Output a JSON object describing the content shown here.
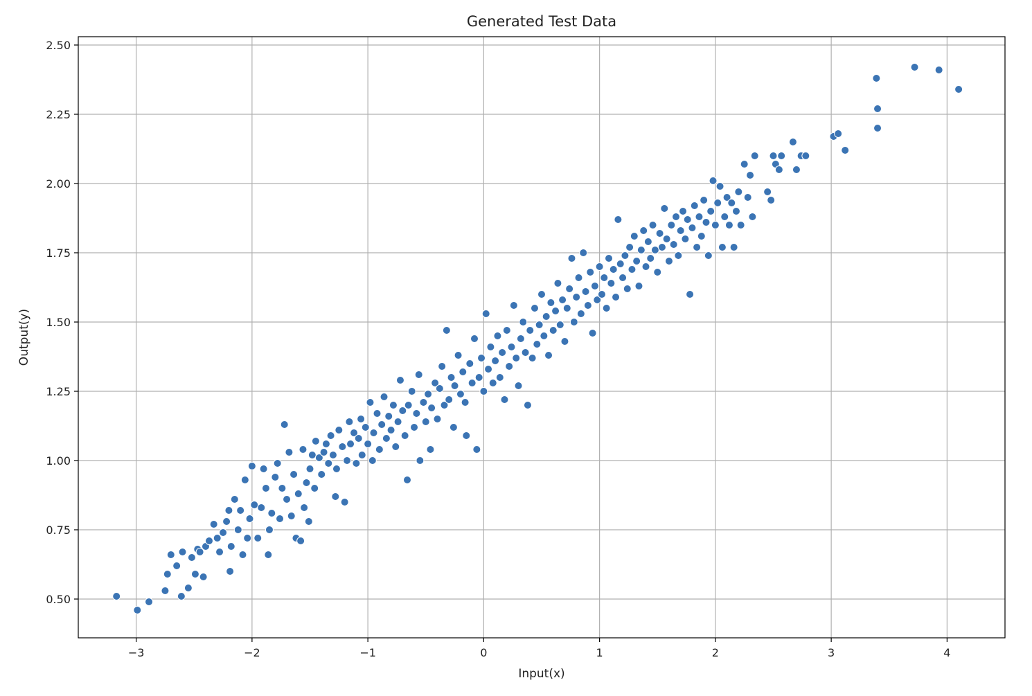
{
  "chart_data": {
    "type": "scatter",
    "title": "Generated Test Data",
    "xlabel": "Input(x)",
    "ylabel": "Output(y)",
    "xlim": [
      -3.5,
      4.5
    ],
    "ylim": [
      0.36,
      2.53
    ],
    "xticks": [
      -3,
      -2,
      -1,
      0,
      1,
      2,
      3,
      4
    ],
    "xtick_labels": [
      "−3",
      "−2",
      "−1",
      "0",
      "1",
      "2",
      "3",
      "4"
    ],
    "yticks": [
      0.5,
      0.75,
      1.0,
      1.25,
      1.5,
      1.75,
      2.0,
      2.25,
      2.5
    ],
    "ytick_labels": [
      "0.50",
      "0.75",
      "1.00",
      "1.25",
      "1.50",
      "1.75",
      "2.00",
      "2.25",
      "2.50"
    ],
    "grid": true,
    "marker_color": "#3b74b4",
    "marker_edge_color": "#ffffff",
    "points": [
      [
        -3.17,
        0.51
      ],
      [
        -2.99,
        0.46
      ],
      [
        -2.89,
        0.49
      ],
      [
        -2.75,
        0.53
      ],
      [
        -2.73,
        0.59
      ],
      [
        -2.7,
        0.66
      ],
      [
        -2.65,
        0.62
      ],
      [
        -2.61,
        0.51
      ],
      [
        -2.6,
        0.67
      ],
      [
        -2.55,
        0.54
      ],
      [
        -2.52,
        0.65
      ],
      [
        -2.49,
        0.59
      ],
      [
        -2.47,
        0.68
      ],
      [
        -2.45,
        0.67
      ],
      [
        -2.42,
        0.58
      ],
      [
        -2.4,
        0.69
      ],
      [
        -2.37,
        0.71
      ],
      [
        -2.33,
        0.77
      ],
      [
        -2.3,
        0.72
      ],
      [
        -2.28,
        0.67
      ],
      [
        -2.25,
        0.74
      ],
      [
        -2.22,
        0.78
      ],
      [
        -2.2,
        0.82
      ],
      [
        -2.19,
        0.6
      ],
      [
        -2.18,
        0.69
      ],
      [
        -2.15,
        0.86
      ],
      [
        -2.12,
        0.75
      ],
      [
        -2.1,
        0.82
      ],
      [
        -2.08,
        0.66
      ],
      [
        -2.06,
        0.93
      ],
      [
        -2.04,
        0.72
      ],
      [
        -2.02,
        0.79
      ],
      [
        -2.0,
        0.98
      ],
      [
        -1.98,
        0.84
      ],
      [
        -1.95,
        0.72
      ],
      [
        -1.92,
        0.83
      ],
      [
        -1.9,
        0.97
      ],
      [
        -1.88,
        0.9
      ],
      [
        -1.86,
        0.66
      ],
      [
        -1.85,
        0.75
      ],
      [
        -1.83,
        0.81
      ],
      [
        -1.8,
        0.94
      ],
      [
        -1.78,
        0.99
      ],
      [
        -1.76,
        0.79
      ],
      [
        -1.74,
        0.9
      ],
      [
        -1.72,
        1.13
      ],
      [
        -1.7,
        0.86
      ],
      [
        -1.68,
        1.03
      ],
      [
        -1.66,
        0.8
      ],
      [
        -1.64,
        0.95
      ],
      [
        -1.62,
        0.72
      ],
      [
        -1.6,
        0.88
      ],
      [
        -1.58,
        0.71
      ],
      [
        -1.56,
        1.04
      ],
      [
        -1.55,
        0.83
      ],
      [
        -1.53,
        0.92
      ],
      [
        -1.51,
        0.78
      ],
      [
        -1.5,
        0.97
      ],
      [
        -1.48,
        1.02
      ],
      [
        -1.46,
        0.9
      ],
      [
        -1.45,
        1.07
      ],
      [
        -1.42,
        1.01
      ],
      [
        -1.4,
        0.95
      ],
      [
        -1.38,
        1.03
      ],
      [
        -1.36,
        1.06
      ],
      [
        -1.34,
        0.99
      ],
      [
        -1.32,
        1.09
      ],
      [
        -1.3,
        1.02
      ],
      [
        -1.28,
        0.87
      ],
      [
        -1.27,
        0.97
      ],
      [
        -1.25,
        1.11
      ],
      [
        -1.22,
        1.05
      ],
      [
        -1.2,
        0.85
      ],
      [
        -1.18,
        1.0
      ],
      [
        -1.16,
        1.14
      ],
      [
        -1.15,
        1.06
      ],
      [
        -1.12,
        1.1
      ],
      [
        -1.1,
        0.99
      ],
      [
        -1.08,
        1.08
      ],
      [
        -1.06,
        1.15
      ],
      [
        -1.05,
        1.02
      ],
      [
        -1.02,
        1.12
      ],
      [
        -1.0,
        1.06
      ],
      [
        -0.98,
        1.21
      ],
      [
        -0.96,
        1.0
      ],
      [
        -0.95,
        1.1
      ],
      [
        -0.92,
        1.17
      ],
      [
        -0.9,
        1.04
      ],
      [
        -0.88,
        1.13
      ],
      [
        -0.86,
        1.23
      ],
      [
        -0.84,
        1.08
      ],
      [
        -0.82,
        1.16
      ],
      [
        -0.8,
        1.11
      ],
      [
        -0.78,
        1.2
      ],
      [
        -0.76,
        1.05
      ],
      [
        -0.74,
        1.14
      ],
      [
        -0.72,
        1.29
      ],
      [
        -0.7,
        1.18
      ],
      [
        -0.68,
        1.09
      ],
      [
        -0.66,
        0.93
      ],
      [
        -0.65,
        1.2
      ],
      [
        -0.62,
        1.25
      ],
      [
        -0.6,
        1.12
      ],
      [
        -0.58,
        1.17
      ],
      [
        -0.56,
        1.31
      ],
      [
        -0.55,
        1.0
      ],
      [
        -0.52,
        1.21
      ],
      [
        -0.5,
        1.14
      ],
      [
        -0.48,
        1.24
      ],
      [
        -0.46,
        1.04
      ],
      [
        -0.45,
        1.19
      ],
      [
        -0.42,
        1.28
      ],
      [
        -0.4,
        1.15
      ],
      [
        -0.38,
        1.26
      ],
      [
        -0.36,
        1.34
      ],
      [
        -0.34,
        1.2
      ],
      [
        -0.32,
        1.47
      ],
      [
        -0.3,
        1.22
      ],
      [
        -0.28,
        1.3
      ],
      [
        -0.26,
        1.12
      ],
      [
        -0.25,
        1.27
      ],
      [
        -0.22,
        1.38
      ],
      [
        -0.2,
        1.24
      ],
      [
        -0.18,
        1.32
      ],
      [
        -0.16,
        1.21
      ],
      [
        -0.15,
        1.09
      ],
      [
        -0.12,
        1.35
      ],
      [
        -0.1,
        1.28
      ],
      [
        -0.08,
        1.44
      ],
      [
        -0.06,
        1.04
      ],
      [
        -0.04,
        1.3
      ],
      [
        -0.02,
        1.37
      ],
      [
        0.0,
        1.25
      ],
      [
        0.02,
        1.53
      ],
      [
        0.04,
        1.33
      ],
      [
        0.06,
        1.41
      ],
      [
        0.08,
        1.28
      ],
      [
        0.1,
        1.36
      ],
      [
        0.12,
        1.45
      ],
      [
        0.14,
        1.3
      ],
      [
        0.16,
        1.39
      ],
      [
        0.18,
        1.22
      ],
      [
        0.2,
        1.47
      ],
      [
        0.22,
        1.34
      ],
      [
        0.24,
        1.41
      ],
      [
        0.26,
        1.56
      ],
      [
        0.28,
        1.37
      ],
      [
        0.3,
        1.27
      ],
      [
        0.32,
        1.44
      ],
      [
        0.34,
        1.5
      ],
      [
        0.36,
        1.39
      ],
      [
        0.38,
        1.2
      ],
      [
        0.4,
        1.47
      ],
      [
        0.42,
        1.37
      ],
      [
        0.44,
        1.55
      ],
      [
        0.46,
        1.42
      ],
      [
        0.48,
        1.49
      ],
      [
        0.5,
        1.6
      ],
      [
        0.52,
        1.45
      ],
      [
        0.54,
        1.52
      ],
      [
        0.56,
        1.38
      ],
      [
        0.58,
        1.57
      ],
      [
        0.6,
        1.47
      ],
      [
        0.62,
        1.54
      ],
      [
        0.64,
        1.64
      ],
      [
        0.66,
        1.49
      ],
      [
        0.68,
        1.58
      ],
      [
        0.7,
        1.43
      ],
      [
        0.72,
        1.55
      ],
      [
        0.74,
        1.62
      ],
      [
        0.76,
        1.73
      ],
      [
        0.78,
        1.5
      ],
      [
        0.8,
        1.59
      ],
      [
        0.82,
        1.66
      ],
      [
        0.84,
        1.53
      ],
      [
        0.86,
        1.75
      ],
      [
        0.88,
        1.61
      ],
      [
        0.9,
        1.56
      ],
      [
        0.92,
        1.68
      ],
      [
        0.94,
        1.46
      ],
      [
        0.96,
        1.63
      ],
      [
        0.98,
        1.58
      ],
      [
        1.0,
        1.7
      ],
      [
        1.02,
        1.6
      ],
      [
        1.04,
        1.66
      ],
      [
        1.06,
        1.55
      ],
      [
        1.08,
        1.73
      ],
      [
        1.1,
        1.64
      ],
      [
        1.12,
        1.69
      ],
      [
        1.14,
        1.59
      ],
      [
        1.16,
        1.87
      ],
      [
        1.18,
        1.71
      ],
      [
        1.2,
        1.66
      ],
      [
        1.22,
        1.74
      ],
      [
        1.24,
        1.62
      ],
      [
        1.26,
        1.77
      ],
      [
        1.28,
        1.69
      ],
      [
        1.3,
        1.81
      ],
      [
        1.32,
        1.72
      ],
      [
        1.34,
        1.63
      ],
      [
        1.36,
        1.76
      ],
      [
        1.38,
        1.83
      ],
      [
        1.4,
        1.7
      ],
      [
        1.42,
        1.79
      ],
      [
        1.44,
        1.73
      ],
      [
        1.46,
        1.85
      ],
      [
        1.48,
        1.76
      ],
      [
        1.5,
        1.68
      ],
      [
        1.52,
        1.82
      ],
      [
        1.54,
        1.77
      ],
      [
        1.56,
        1.91
      ],
      [
        1.58,
        1.8
      ],
      [
        1.6,
        1.72
      ],
      [
        1.62,
        1.85
      ],
      [
        1.64,
        1.78
      ],
      [
        1.66,
        1.88
      ],
      [
        1.68,
        1.74
      ],
      [
        1.7,
        1.83
      ],
      [
        1.72,
        1.9
      ],
      [
        1.74,
        1.8
      ],
      [
        1.76,
        1.87
      ],
      [
        1.78,
        1.6
      ],
      [
        1.8,
        1.84
      ],
      [
        1.82,
        1.92
      ],
      [
        1.84,
        1.77
      ],
      [
        1.86,
        1.88
      ],
      [
        1.88,
        1.81
      ],
      [
        1.9,
        1.94
      ],
      [
        1.92,
        1.86
      ],
      [
        1.94,
        1.74
      ],
      [
        1.96,
        1.9
      ],
      [
        1.98,
        2.01
      ],
      [
        2.0,
        1.85
      ],
      [
        2.02,
        1.93
      ],
      [
        2.04,
        1.99
      ],
      [
        2.06,
        1.77
      ],
      [
        2.08,
        1.88
      ],
      [
        2.1,
        1.95
      ],
      [
        2.12,
        1.85
      ],
      [
        2.14,
        1.93
      ],
      [
        2.16,
        1.77
      ],
      [
        2.18,
        1.9
      ],
      [
        2.2,
        1.97
      ],
      [
        2.22,
        1.85
      ],
      [
        2.25,
        2.07
      ],
      [
        2.28,
        1.95
      ],
      [
        2.3,
        2.03
      ],
      [
        2.32,
        1.88
      ],
      [
        2.34,
        2.1
      ],
      [
        2.45,
        1.97
      ],
      [
        2.48,
        1.94
      ],
      [
        2.5,
        2.1
      ],
      [
        2.52,
        2.07
      ],
      [
        2.55,
        2.05
      ],
      [
        2.57,
        2.1
      ],
      [
        2.67,
        2.15
      ],
      [
        2.7,
        2.05
      ],
      [
        2.74,
        2.1
      ],
      [
        2.78,
        2.1
      ],
      [
        3.02,
        2.17
      ],
      [
        3.06,
        2.18
      ],
      [
        3.12,
        2.12
      ],
      [
        3.39,
        2.38
      ],
      [
        3.4,
        2.27
      ],
      [
        3.4,
        2.2
      ],
      [
        3.72,
        2.42
      ],
      [
        3.93,
        2.41
      ],
      [
        4.1,
        2.34
      ]
    ]
  }
}
